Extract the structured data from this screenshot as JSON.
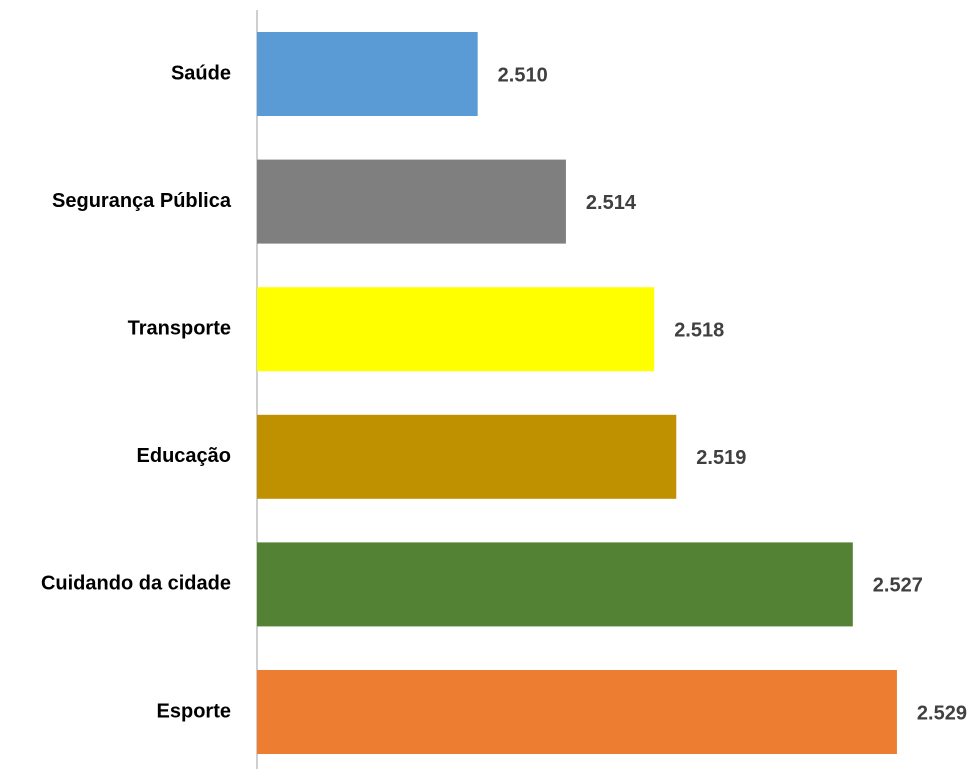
{
  "chart_data": {
    "type": "bar",
    "orientation": "horizontal",
    "categories": [
      "Saúde",
      "Segurança Pública",
      "Transporte",
      "Educação",
      "Cuidando da cidade",
      "Esporte"
    ],
    "values": [
      2510,
      2514,
      2518,
      2519,
      2527,
      2529
    ],
    "value_labels": [
      "2.510",
      "2.514",
      "2.518",
      "2.519",
      "2.527",
      "2.529"
    ],
    "colors": [
      "#5b9bd5",
      "#7f7f7f",
      "#ffff00",
      "#bf9000",
      "#548235",
      "#ed7d31"
    ],
    "xlim": [
      2500,
      2530
    ]
  }
}
